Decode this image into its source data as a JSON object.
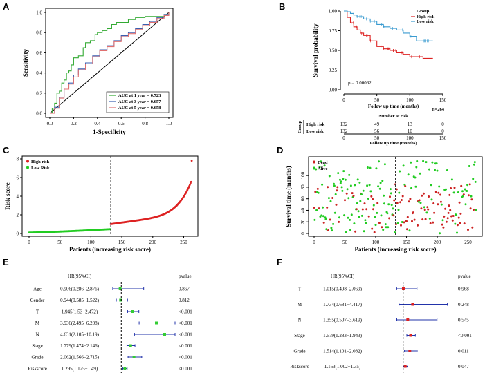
{
  "panels": {
    "A": "A",
    "B": "B",
    "C": "C",
    "D": "D",
    "E": "E",
    "F": "F"
  },
  "chart_data": [
    {
      "id": "A",
      "type": "line",
      "title": "",
      "xlabel": "1-Specificity",
      "ylabel": "Sensitivity",
      "xlim": [
        0,
        1
      ],
      "ylim": [
        0,
        1
      ],
      "xticks": [
        "0.0",
        "0.2",
        "0.4",
        "0.6",
        "0.8",
        "1.0"
      ],
      "yticks": [
        "0.0",
        "0.2",
        "0.4",
        "0.6",
        "0.8",
        "1.0"
      ],
      "legend": "bottom-right",
      "series": [
        {
          "name": "AUC at 1 year = 0.723",
          "color": "#33aa33",
          "x": [
            0,
            0.02,
            0.04,
            0.06,
            0.08,
            0.1,
            0.12,
            0.14,
            0.16,
            0.18,
            0.2,
            0.24,
            0.28,
            0.3,
            0.34,
            0.38,
            0.4,
            0.44,
            0.48,
            0.52,
            0.56,
            0.6,
            0.66,
            0.72,
            0.8,
            0.88,
            0.96,
            1.0
          ],
          "y": [
            0,
            0.05,
            0.1,
            0.2,
            0.22,
            0.3,
            0.33,
            0.4,
            0.42,
            0.48,
            0.55,
            0.57,
            0.65,
            0.7,
            0.72,
            0.78,
            0.8,
            0.82,
            0.84,
            0.88,
            0.9,
            0.9,
            0.93,
            0.95,
            0.96,
            0.96,
            0.98,
            1.0
          ]
        },
        {
          "name": "AUC at 3 year = 0.657",
          "color": "#3a5fb0",
          "x": [
            0,
            0.04,
            0.08,
            0.12,
            0.16,
            0.2,
            0.24,
            0.3,
            0.36,
            0.42,
            0.48,
            0.54,
            0.6,
            0.66,
            0.72,
            0.78,
            0.84,
            0.9,
            0.96,
            1.0
          ],
          "y": [
            0,
            0.06,
            0.16,
            0.25,
            0.3,
            0.38,
            0.44,
            0.5,
            0.57,
            0.63,
            0.67,
            0.72,
            0.77,
            0.8,
            0.84,
            0.88,
            0.91,
            0.95,
            0.98,
            1.0
          ]
        },
        {
          "name": "AUC at 5 year = 0.658",
          "color": "#e07070",
          "x": [
            0,
            0.04,
            0.08,
            0.12,
            0.16,
            0.2,
            0.24,
            0.3,
            0.36,
            0.42,
            0.48,
            0.54,
            0.6,
            0.66,
            0.72,
            0.78,
            0.84,
            0.9,
            0.96,
            1.0
          ],
          "y": [
            0,
            0.05,
            0.15,
            0.24,
            0.29,
            0.36,
            0.43,
            0.49,
            0.56,
            0.62,
            0.66,
            0.71,
            0.76,
            0.79,
            0.83,
            0.87,
            0.9,
            0.94,
            0.97,
            1.0
          ]
        }
      ]
    },
    {
      "id": "B",
      "type": "line",
      "title": "Group",
      "xlabel": "Follow up time (months)",
      "ylabel": "Survival probability",
      "xlim": [
        0,
        150
      ],
      "ylim": [
        0,
        1
      ],
      "xticks": [
        "0",
        "50",
        "100",
        "150"
      ],
      "yticks": [
        "0.00",
        "0.25",
        "0.50",
        "0.75",
        "1.00"
      ],
      "pvalue": "p = 0.00062",
      "n_total": "n=264",
      "series": [
        {
          "name": "High risk",
          "color": "#dd2222",
          "x": [
            0,
            5,
            10,
            15,
            20,
            25,
            30,
            40,
            50,
            60,
            70,
            80,
            90,
            100,
            110,
            120,
            130,
            135
          ],
          "y": [
            1,
            0.92,
            0.85,
            0.8,
            0.76,
            0.72,
            0.69,
            0.62,
            0.55,
            0.52,
            0.5,
            0.47,
            0.45,
            0.42,
            0.42,
            0.4,
            0.4,
            0.4
          ]
        },
        {
          "name": "Low risk",
          "color": "#3a9bd0",
          "x": [
            0,
            5,
            10,
            15,
            20,
            30,
            40,
            50,
            60,
            70,
            80,
            90,
            100,
            110,
            120,
            130,
            135
          ],
          "y": [
            1,
            0.99,
            0.97,
            0.95,
            0.93,
            0.9,
            0.87,
            0.83,
            0.8,
            0.78,
            0.76,
            0.72,
            0.68,
            0.62,
            0.62,
            0.62,
            0.62
          ]
        }
      ],
      "risk_table": {
        "title": "Number at risk",
        "row_label_axis": "Group",
        "times": [
          "0",
          "50",
          "100",
          "150"
        ],
        "rows": [
          {
            "name": "High risk",
            "color": "#dd2222",
            "values": [
              "132",
              "49",
              "13",
              "0"
            ]
          },
          {
            "name": "Low risk",
            "color": "#3a9bd0",
            "values": [
              "132",
              "56",
              "10",
              "0"
            ]
          }
        ],
        "xlabel": "Follow up time (months)"
      }
    },
    {
      "id": "C",
      "type": "scatter",
      "xlabel": "Patients (increasing risk socre)",
      "ylabel": "Risk score",
      "xlim": [
        0,
        264
      ],
      "ylim": [
        0,
        8
      ],
      "xticks": [
        "0",
        "50",
        "100",
        "150",
        "200",
        "250"
      ],
      "yticks": [
        "0",
        "2",
        "4",
        "6",
        "8"
      ],
      "cutoff_x": 132,
      "cutoff_y": 1.0,
      "legend_items": [
        {
          "name": "High risk",
          "color": "#dd2222"
        },
        {
          "name": "Low Risk",
          "color": "#22cc22"
        }
      ],
      "n": 264
    },
    {
      "id": "D",
      "type": "scatter",
      "xlabel": "Patients (increasing risk socre)",
      "ylabel": "Survival time (months)",
      "xlim": [
        0,
        264
      ],
      "ylim": [
        0,
        130
      ],
      "xticks": [
        "0",
        "50",
        "100",
        "150",
        "200",
        "250"
      ],
      "yticks": [
        "0",
        "20",
        "40",
        "60",
        "80",
        "100"
      ],
      "cutoff_x": 132,
      "legend_items": [
        {
          "name": "Dead",
          "color": "#cc2222"
        },
        {
          "name": "Alive",
          "color": "#22cc22"
        }
      ],
      "n": 264
    },
    {
      "id": "E",
      "type": "forest",
      "header_hr": "HR(95%CI)",
      "header_p": "pvalue",
      "xticks": [
        "1",
        "2",
        "3",
        "4",
        "5"
      ],
      "xlim": [
        0,
        5.5
      ],
      "rows": [
        {
          "label": "Age",
          "hr_text": "0.906(0.286−2.876)",
          "hr": 0.906,
          "lo": 0.286,
          "hi": 2.876,
          "p": "0.867"
        },
        {
          "label": "Gender",
          "hr_text": "0.944(0.585−1.522)",
          "hr": 0.944,
          "lo": 0.585,
          "hi": 1.522,
          "p": "0.812"
        },
        {
          "label": "T",
          "hr_text": "1.945(1.53−2.472)",
          "hr": 1.945,
          "lo": 1.53,
          "hi": 2.472,
          "p": "<0.001"
        },
        {
          "label": "M",
          "hr_text": "3.936(2.495−6.208)",
          "hr": 3.936,
          "lo": 2.495,
          "hi": 6.208,
          "p": "<0.001"
        },
        {
          "label": "N",
          "hr_text": "4.631(2.105−10.19)",
          "hr": 4.631,
          "lo": 2.105,
          "hi": 10.19,
          "p": "<0.001"
        },
        {
          "label": "Stage",
          "hr_text": "1.779(1.474−2.146)",
          "hr": 1.779,
          "lo": 1.474,
          "hi": 2.146,
          "p": "<0.001"
        },
        {
          "label": "Grade",
          "hr_text": "2.062(1.566−2.715)",
          "hr": 2.062,
          "lo": 1.566,
          "hi": 2.715,
          "p": "<0.001"
        },
        {
          "label": "Riskscore",
          "hr_text": "1.295(1.125−1.49)",
          "hr": 1.295,
          "lo": 1.125,
          "hi": 1.49,
          "p": "<0.001"
        }
      ]
    },
    {
      "id": "F",
      "type": "forest",
      "header_hr": "HR(95%CI)",
      "header_p": "pvalue",
      "xticks": [
        "1",
        "2",
        "3",
        "4"
      ],
      "xlim": [
        0,
        4.6
      ],
      "rows": [
        {
          "label": "T",
          "hr_text": "1.015(0.498−2.069)",
          "hr": 1.015,
          "lo": 0.498,
          "hi": 2.069,
          "p": "0.968"
        },
        {
          "label": "M",
          "hr_text": "1.734(0.681−4.417)",
          "hr": 1.734,
          "lo": 0.681,
          "hi": 4.417,
          "p": "0.248"
        },
        {
          "label": "N",
          "hr_text": "1.355(0.507−3.619)",
          "hr": 1.355,
          "lo": 0.507,
          "hi": 3.619,
          "p": "0.545"
        },
        {
          "label": "Stage",
          "hr_text": "1.579(1.283−1.943)",
          "hr": 1.579,
          "lo": 1.283,
          "hi": 1.943,
          "p": "<0.001"
        },
        {
          "label": "Grade",
          "hr_text": "1.514(1.101−2.082)",
          "hr": 1.514,
          "lo": 1.101,
          "hi": 2.082,
          "p": "0.011"
        },
        {
          "label": "Riskscore",
          "hr_text": "1.163(1.002−1.35)",
          "hr": 1.163,
          "lo": 1.002,
          "hi": 1.35,
          "p": "0.047"
        }
      ]
    }
  ]
}
